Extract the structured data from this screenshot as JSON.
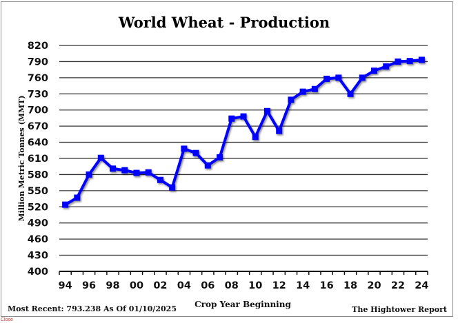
{
  "chart_data": {
    "type": "line",
    "title": "World Wheat - Production",
    "xlabel": "Crop Year Beginning",
    "ylabel": "Million Metric Tonnes (MMT)",
    "ylim": [
      400,
      820
    ],
    "yticks": [
      400,
      430,
      460,
      490,
      520,
      550,
      580,
      610,
      640,
      670,
      700,
      730,
      760,
      790,
      820
    ],
    "grid": true,
    "legend": "none",
    "categories": [
      "94",
      "95",
      "96",
      "97",
      "98",
      "99",
      "00",
      "01",
      "02",
      "03",
      "04",
      "05",
      "06",
      "07",
      "08",
      "09",
      "10",
      "11",
      "12",
      "13",
      "14",
      "15",
      "16",
      "17",
      "18",
      "19",
      "20",
      "21",
      "22",
      "23",
      "24"
    ],
    "xtick_labels": [
      "94",
      "96",
      "98",
      "00",
      "02",
      "04",
      "06",
      "08",
      "10",
      "12",
      "14",
      "16",
      "18",
      "20",
      "22",
      "24"
    ],
    "series": [
      {
        "name": "World Wheat Production",
        "color": "#0000ff",
        "marker": "square",
        "values": [
          524,
          537,
          580,
          611,
          591,
          588,
          583,
          584,
          570,
          556,
          628,
          620,
          597,
          612,
          684,
          688,
          650,
          698,
          661,
          719,
          734,
          739,
          758,
          760,
          730,
          760,
          773,
          781,
          790,
          791,
          793.238
        ]
      }
    ]
  },
  "footer": {
    "most_recent": "Most Recent: 793.238 As Of 01/10/2025",
    "source": "The Hightower Report"
  },
  "close_link": "Close"
}
